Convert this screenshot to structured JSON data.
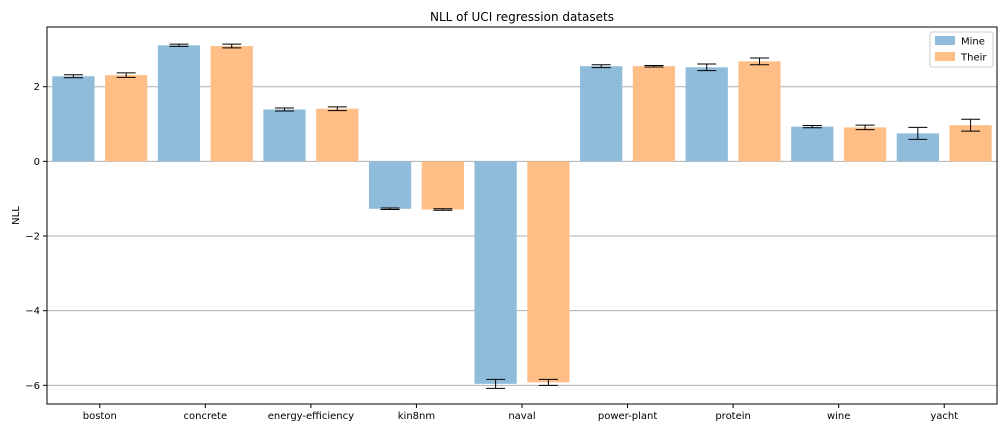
{
  "chart_data": {
    "type": "bar",
    "title": "NLL of UCI regression datasets",
    "xlabel": "",
    "ylabel": "NLL",
    "ylim": [
      -6.5,
      3.6
    ],
    "yticks": [
      -6,
      -4,
      -2,
      0,
      2
    ],
    "grid": "horizontal",
    "legend_position": "top-right",
    "categories": [
      "boston",
      "concrete",
      "energy-efficiency",
      "kin8nm",
      "naval",
      "power-plant",
      "protein",
      "wine",
      "yacht"
    ],
    "series": [
      {
        "name": "Mine",
        "color": "#8fbcdb",
        "values": [
          2.28,
          3.11,
          1.39,
          -1.27,
          -5.96,
          2.55,
          2.52,
          0.93,
          0.75
        ],
        "errors": [
          0.04,
          0.03,
          0.04,
          0.02,
          0.12,
          0.04,
          0.09,
          0.03,
          0.16
        ]
      },
      {
        "name": "Their",
        "color": "#ffbe86",
        "values": [
          2.31,
          3.09,
          1.41,
          -1.29,
          -5.92,
          2.55,
          2.68,
          0.91,
          0.97
        ],
        "errors": [
          0.06,
          0.05,
          0.05,
          0.02,
          0.08,
          0.02,
          0.09,
          0.06,
          0.16
        ]
      }
    ]
  }
}
